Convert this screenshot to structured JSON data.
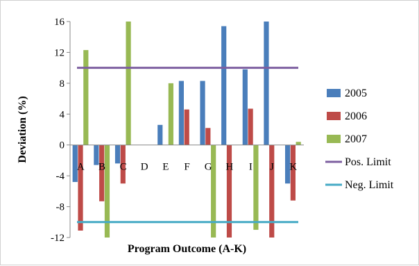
{
  "chart_data": {
    "type": "bar",
    "xlabel": "Program Outcome (A-K)",
    "ylabel": "Deviation (%)",
    "ylim": [
      -12,
      16
    ],
    "yticks": [
      -12,
      -8,
      -4,
      0,
      4,
      8,
      12,
      16
    ],
    "grid": false,
    "legend_position": "right",
    "categories": [
      "A",
      "B",
      "C",
      "D",
      "E",
      "F",
      "G",
      "H",
      "I",
      "J",
      "K"
    ],
    "series": [
      {
        "name": "2005",
        "color": "#4a7ebb",
        "values": [
          -4.8,
          -2.6,
          -2.4,
          0,
          2.6,
          8.3,
          8.3,
          15.4,
          9.8,
          16,
          -5.0
        ]
      },
      {
        "name": "2006",
        "color": "#be4b48",
        "values": [
          -11.1,
          -7.3,
          -5.0,
          0,
          0,
          4.6,
          2.2,
          -12,
          4.7,
          -12,
          -7.2
        ]
      },
      {
        "name": "2007",
        "color": "#98b954",
        "values": [
          12.3,
          -12,
          16,
          0,
          8.0,
          0,
          -12,
          0,
          -11.0,
          0,
          0.4
        ]
      }
    ],
    "limits": [
      {
        "name": "Pos. Limit",
        "color": "#7d5fa0",
        "value": 10
      },
      {
        "name": "Neg. Limit",
        "color": "#46aac5",
        "value": -10
      }
    ]
  }
}
